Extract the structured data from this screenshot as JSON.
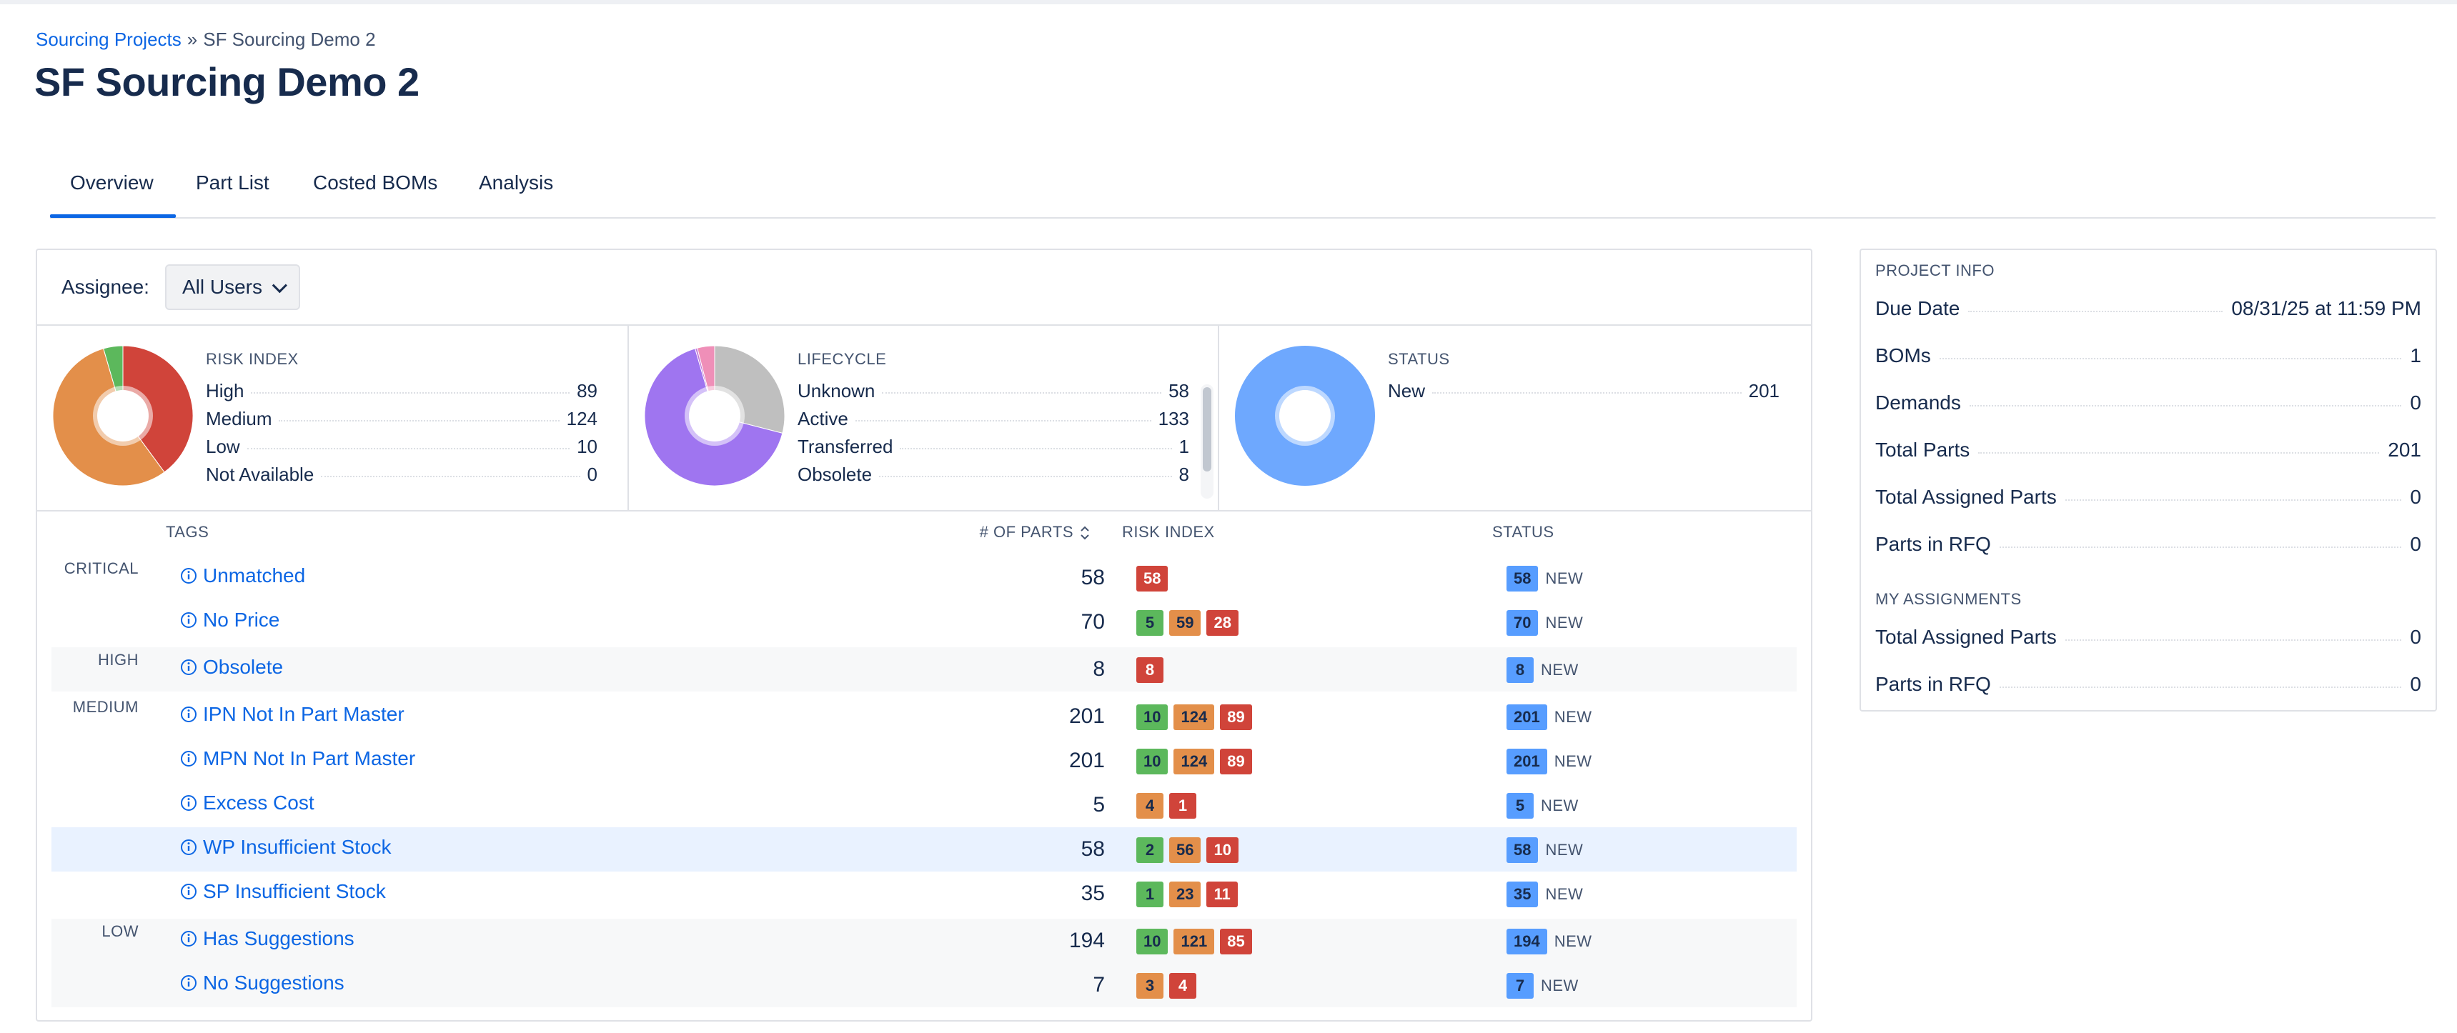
{
  "breadcrumb": {
    "parent": "Sourcing Projects",
    "separator": "»",
    "current": "SF Sourcing Demo 2"
  },
  "page": {
    "title": "SF Sourcing Demo 2"
  },
  "tabs": [
    {
      "label": "Overview",
      "active": true
    },
    {
      "label": "Part List",
      "active": false
    },
    {
      "label": "Costed BOMs",
      "active": false
    },
    {
      "label": "Analysis",
      "active": false
    }
  ],
  "filter": {
    "assignee_label": "Assignee:",
    "assignee_value": "All Users"
  },
  "summary_charts": {
    "risk_index": {
      "title": "RISK INDEX",
      "items": [
        {
          "label": "High",
          "value": 89,
          "color": "#d0443a"
        },
        {
          "label": "Medium",
          "value": 124,
          "color": "#e38f4a"
        },
        {
          "label": "Low",
          "value": 10,
          "color": "#5cb85c"
        },
        {
          "label": "Not Available",
          "value": 0,
          "color": "#c1c7d0"
        }
      ]
    },
    "lifecycle": {
      "title": "LIFECYCLE",
      "items": [
        {
          "label": "Unknown",
          "value": 58,
          "color": "#bfbfbf"
        },
        {
          "label": "Active",
          "value": 133,
          "color": "#9f75f0"
        },
        {
          "label": "Transferred",
          "value": 1,
          "color": "#c47ad8"
        },
        {
          "label": "Obsolete",
          "value": 8,
          "color": "#ef8fb8"
        }
      ]
    },
    "status": {
      "title": "STATUS",
      "items": [
        {
          "label": "New",
          "value": 201,
          "color": "#6ea8fe"
        }
      ]
    }
  },
  "table": {
    "headers": {
      "tags": "TAGS",
      "parts": "# OF PARTS",
      "risk": "RISK INDEX",
      "status": "STATUS"
    },
    "rows": [
      {
        "severity": "CRITICAL",
        "tag": "Unmatched",
        "parts": 58,
        "risk": [
          {
            "v": "58",
            "c": "red"
          }
        ],
        "status_count": "58",
        "status_label": "NEW"
      },
      {
        "severity": "",
        "tag": "No Price",
        "parts": 70,
        "risk": [
          {
            "v": "5",
            "c": "green"
          },
          {
            "v": "59",
            "c": "orange"
          },
          {
            "v": "28",
            "c": "red"
          }
        ],
        "status_count": "70",
        "status_label": "NEW"
      },
      {
        "severity": "HIGH",
        "tag": "Obsolete",
        "parts": 8,
        "risk": [
          {
            "v": "8",
            "c": "red"
          }
        ],
        "status_count": "8",
        "status_label": "NEW"
      },
      {
        "severity": "MEDIUM",
        "tag": "IPN Not In Part Master",
        "parts": 201,
        "risk": [
          {
            "v": "10",
            "c": "green"
          },
          {
            "v": "124",
            "c": "orange"
          },
          {
            "v": "89",
            "c": "red"
          }
        ],
        "status_count": "201",
        "status_label": "NEW"
      },
      {
        "severity": "",
        "tag": "MPN Not In Part Master",
        "parts": 201,
        "risk": [
          {
            "v": "10",
            "c": "green"
          },
          {
            "v": "124",
            "c": "orange"
          },
          {
            "v": "89",
            "c": "red"
          }
        ],
        "status_count": "201",
        "status_label": "NEW"
      },
      {
        "severity": "",
        "tag": "Excess Cost",
        "parts": 5,
        "risk": [
          {
            "v": "4",
            "c": "orange"
          },
          {
            "v": "1",
            "c": "red"
          }
        ],
        "status_count": "5",
        "status_label": "NEW"
      },
      {
        "severity": "",
        "tag": "WP Insufficient Stock",
        "parts": 58,
        "risk": [
          {
            "v": "2",
            "c": "green"
          },
          {
            "v": "56",
            "c": "orange"
          },
          {
            "v": "10",
            "c": "red"
          }
        ],
        "status_count": "58",
        "status_label": "NEW"
      },
      {
        "severity": "",
        "tag": "SP Insufficient Stock",
        "parts": 35,
        "risk": [
          {
            "v": "1",
            "c": "green"
          },
          {
            "v": "23",
            "c": "orange"
          },
          {
            "v": "11",
            "c": "red"
          }
        ],
        "status_count": "35",
        "status_label": "NEW"
      },
      {
        "severity": "LOW",
        "tag": "Has Suggestions",
        "parts": 194,
        "risk": [
          {
            "v": "10",
            "c": "green"
          },
          {
            "v": "121",
            "c": "orange"
          },
          {
            "v": "85",
            "c": "red"
          }
        ],
        "status_count": "194",
        "status_label": "NEW"
      },
      {
        "severity": "",
        "tag": "No Suggestions",
        "parts": 7,
        "risk": [
          {
            "v": "3",
            "c": "orange"
          },
          {
            "v": "4",
            "c": "red"
          }
        ],
        "status_count": "7",
        "status_label": "NEW"
      }
    ]
  },
  "project_info": {
    "title": "PROJECT INFO",
    "rows": [
      {
        "label": "Due Date",
        "value": "08/31/25 at 11:59 PM"
      },
      {
        "label": "BOMs",
        "value": "1"
      },
      {
        "label": "Demands",
        "value": "0"
      },
      {
        "label": "Total Parts",
        "value": "201"
      },
      {
        "label": "Total Assigned Parts",
        "value": "0"
      },
      {
        "label": "Parts in RFQ",
        "value": "0"
      }
    ],
    "assignments_title": "MY ASSIGNMENTS",
    "assignments": [
      {
        "label": "Total Assigned Parts",
        "value": "0"
      },
      {
        "label": "Parts in RFQ",
        "value": "0"
      }
    ]
  },
  "icons": {
    "info": "info-circle-icon",
    "sort": "sort-icon",
    "dropdown": "chevron-down-icon"
  },
  "colors": {
    "link": "#0c66e4",
    "accent": "#0c66e4",
    "selected_row": "#e9f2ff"
  }
}
